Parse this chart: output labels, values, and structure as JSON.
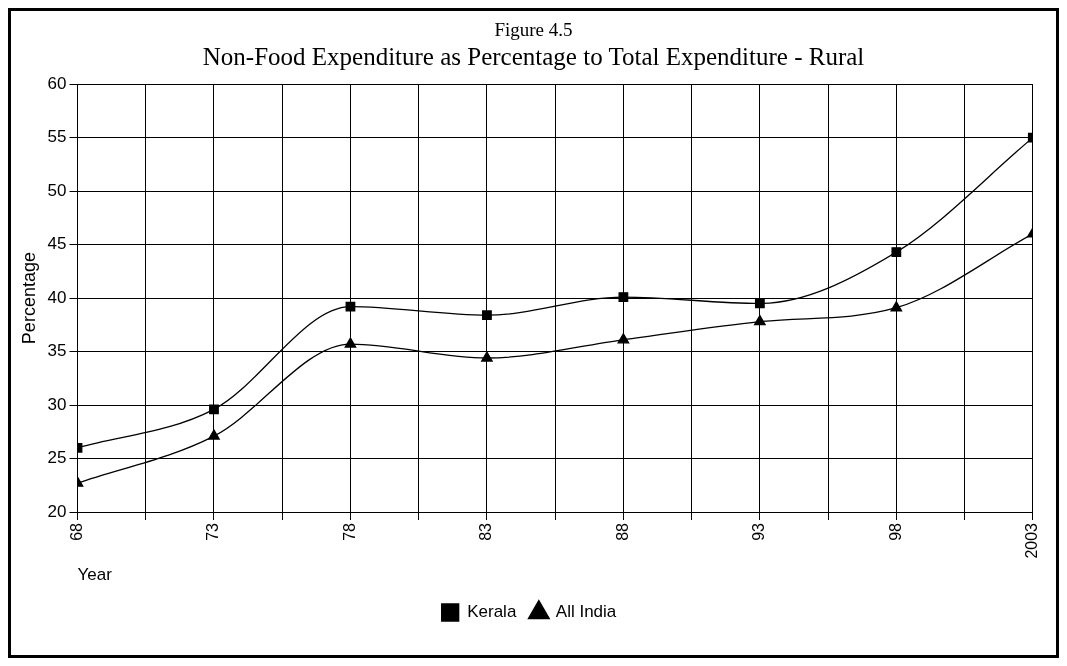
{
  "chart_data": {
    "type": "line",
    "title": "Non-Food Expenditure as Percentage to Total Expenditure - Rural",
    "annotations": [
      "Figure 4.5"
    ],
    "xlabel": "Year",
    "ylabel": "Percentage",
    "categories": [
      "68",
      "73",
      "78",
      "83",
      "88",
      "93",
      "98",
      "2003"
    ],
    "series": [
      {
        "name": "Kerala",
        "color": "#000000",
        "marker": "square",
        "values": [
          26,
          29.6,
          39.2,
          38.4,
          40.1,
          39.5,
          44.3,
          55
        ]
      },
      {
        "name": "All India",
        "color": "#000000",
        "marker": "triangle",
        "values": [
          22.7,
          27.1,
          35.7,
          34.4,
          36.1,
          37.8,
          39.1,
          46
        ]
      }
    ],
    "ylim": [
      20,
      60
    ],
    "yticks": [
      20,
      25,
      30,
      35,
      40,
      45,
      50,
      55,
      60
    ],
    "grid": true,
    "legend": "bottom",
    "line_style": "solid"
  }
}
